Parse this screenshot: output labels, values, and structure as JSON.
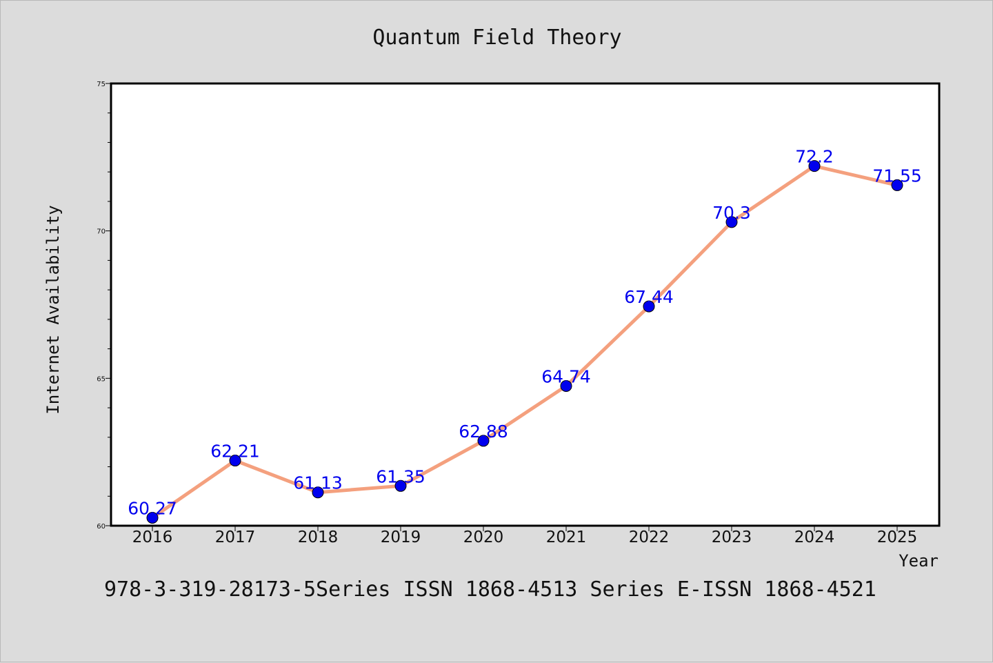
{
  "chart_data": {
    "type": "line",
    "title": "Quantum Field Theory",
    "xlabel": "Year",
    "ylabel": "Internet Availability",
    "categories": [
      "2016",
      "2017",
      "2018",
      "2019",
      "2020",
      "2021",
      "2022",
      "2023",
      "2024",
      "2025"
    ],
    "series": [
      {
        "values": [
          60.27,
          62.21,
          61.13,
          61.35,
          62.88,
          64.74,
          67.44,
          70.3,
          72.2,
          71.55
        ],
        "data_labels": [
          "60.27",
          "62.21",
          "61.13",
          "61.35",
          "62.88",
          "64.74",
          "67.44",
          "70.3",
          "72.2",
          "71.55"
        ],
        "line_color": "#f4a07e",
        "marker_color": "#0000ee"
      }
    ],
    "ylim": [
      60,
      75
    ],
    "yticks": [
      "60",
      "65",
      "70",
      "75"
    ],
    "grid": false,
    "label_color": "#0000ee"
  },
  "footer_text": "978-3-319-28173-5Series ISSN 1868-4513 Series E-ISSN 1868-4521"
}
